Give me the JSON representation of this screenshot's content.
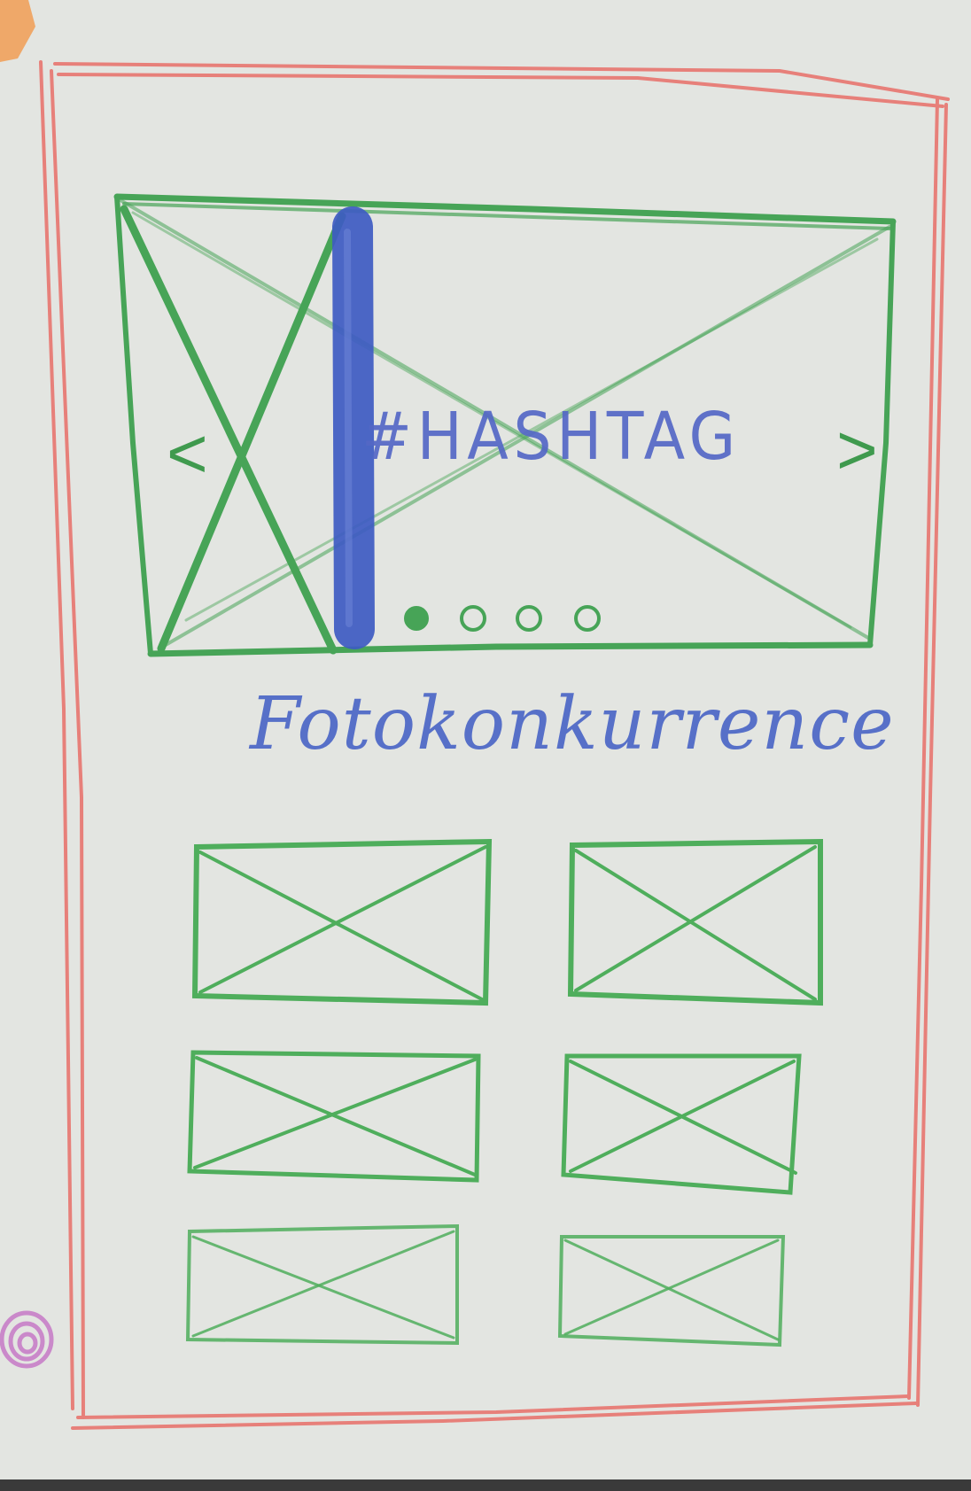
{
  "hero": {
    "hashtag": "#HASHTAG",
    "prev_glyph": "<",
    "next_glyph": ">",
    "dots": [
      {
        "active": true
      },
      {
        "active": false
      },
      {
        "active": false
      },
      {
        "active": false
      }
    ]
  },
  "title": "Fotokonkurrence",
  "gallery": {
    "placeholders": 6
  },
  "colors": {
    "frame": "#e7807a",
    "placeholder": "#4fae5c",
    "scrollbar": "#3e5bc2",
    "text": "#5468c6",
    "paper": "#e3e5e1"
  }
}
